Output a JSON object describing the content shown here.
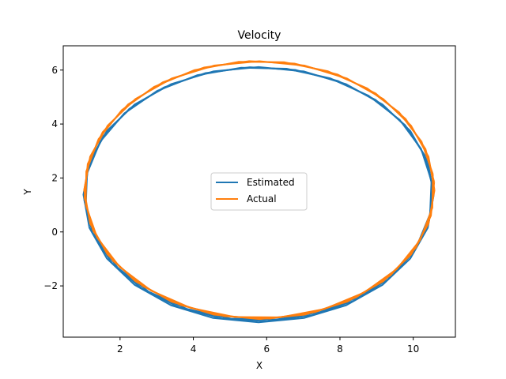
{
  "chart_data": {
    "type": "line",
    "title": "Velocity",
    "xlabel": "X",
    "ylabel": "Y",
    "xlim": [
      0.45,
      11.15
    ],
    "ylim": [
      -3.9,
      6.9
    ],
    "xticks": [
      2,
      4,
      6,
      8,
      10
    ],
    "yticks": [
      -2,
      0,
      2,
      4,
      6
    ],
    "grid": false,
    "legend_position": "center",
    "series": [
      {
        "name": "Estimated",
        "color": "#1f77b4",
        "loops": [
          {
            "cx": 5.78,
            "cy": 1.38,
            "rx": 4.78,
            "ry": 4.78,
            "squash": 0.99,
            "offset": 0.0
          },
          {
            "cx": 5.78,
            "cy": 1.4,
            "rx": 4.76,
            "ry": 4.76,
            "squash": 0.99,
            "offset": 0.05
          },
          {
            "cx": 5.78,
            "cy": 1.42,
            "rx": 4.74,
            "ry": 4.74,
            "squash": 0.99,
            "offset": 0.1
          }
        ]
      },
      {
        "name": "Actual",
        "color": "#ff7f0e",
        "loops": [
          {
            "cx": 5.8,
            "cy": 1.55,
            "rx": 4.78,
            "ry": 4.78,
            "squash": 1.0,
            "offset": 0.0
          },
          {
            "cx": 5.8,
            "cy": 1.56,
            "rx": 4.78,
            "ry": 4.78,
            "squash": 1.0,
            "offset": 0.06
          },
          {
            "cx": 5.8,
            "cy": 1.57,
            "rx": 4.77,
            "ry": 4.77,
            "squash": 1.0,
            "offset": 0.12
          }
        ]
      }
    ]
  }
}
